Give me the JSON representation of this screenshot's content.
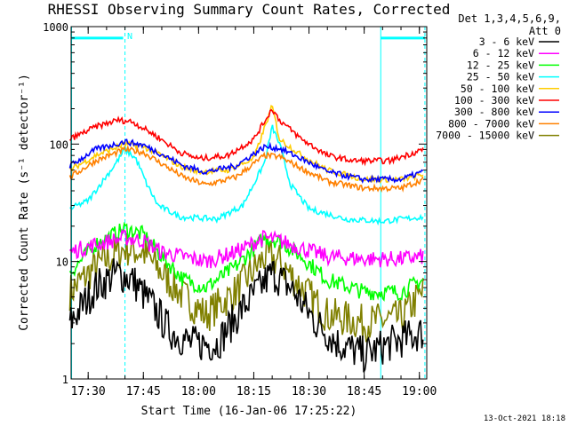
{
  "chart_data": {
    "type": "line",
    "title": "RHESSI Observing Summary Count Rates, Corrected",
    "xlabel": "Start Time (16-Jan-06 17:25:22)",
    "ylabel": "Corrected Count Rate (s⁻¹ detector⁻¹)",
    "yscale": "log",
    "ylim": [
      1,
      1000
    ],
    "xlim": [
      "17:25:22",
      "19:02:00"
    ],
    "y_tick_labels": [
      "1",
      "10",
      "100",
      "1000"
    ],
    "x_tick_labels": [
      "17:30",
      "17:45",
      "18:00",
      "18:15",
      "18:30",
      "18:45",
      "19:00"
    ],
    "legend_title_lines": [
      "Det 1,3,4,5,6,9,",
      "Att 0"
    ],
    "legend_position": "right",
    "timestamp": "13-Oct-2021 18:18",
    "night_marker_label": "N",
    "series": [
      {
        "name": "3 - 6 keV",
        "color": "#000000",
        "points": [
          [
            "17:25",
            3
          ],
          [
            "17:32",
            6
          ],
          [
            "17:38",
            8
          ],
          [
            "17:42",
            7
          ],
          [
            "17:48",
            4
          ],
          [
            "17:52",
            2.6
          ],
          [
            "17:58",
            2
          ],
          [
            "18:05",
            2
          ],
          [
            "18:12",
            4
          ],
          [
            "18:20",
            8
          ],
          [
            "18:25",
            6
          ],
          [
            "18:32",
            3
          ],
          [
            "18:38",
            2
          ],
          [
            "18:45",
            1.6
          ],
          [
            "18:52",
            2
          ],
          [
            "19:01",
            2.5
          ]
        ]
      },
      {
        "name": "6 - 12 keV",
        "color": "#ff00ff",
        "points": [
          [
            "17:25",
            12
          ],
          [
            "17:32",
            14
          ],
          [
            "17:40",
            16
          ],
          [
            "17:45",
            15
          ],
          [
            "17:50",
            12
          ],
          [
            "17:56",
            11
          ],
          [
            "18:02",
            10
          ],
          [
            "18:10",
            12
          ],
          [
            "18:18",
            16
          ],
          [
            "18:22",
            15
          ],
          [
            "18:28",
            13
          ],
          [
            "18:35",
            11
          ],
          [
            "18:45",
            10.5
          ],
          [
            "18:55",
            10.5
          ],
          [
            "19:01",
            11
          ]
        ]
      },
      {
        "name": "12 - 25 keV",
        "color": "#00ff00",
        "points": [
          [
            "17:25",
            8
          ],
          [
            "17:32",
            14
          ],
          [
            "17:40",
            19
          ],
          [
            "17:45",
            17
          ],
          [
            "17:50",
            11
          ],
          [
            "17:56",
            7
          ],
          [
            "18:02",
            6
          ],
          [
            "18:10",
            9
          ],
          [
            "18:18",
            16
          ],
          [
            "18:22",
            15
          ],
          [
            "18:28",
            11
          ],
          [
            "18:35",
            7
          ],
          [
            "18:45",
            5.5
          ],
          [
            "18:55",
            5.5
          ],
          [
            "19:01",
            7
          ]
        ]
      },
      {
        "name": "25 - 50 keV",
        "color": "#00ffff",
        "points": [
          [
            "17:25",
            28
          ],
          [
            "17:30",
            33
          ],
          [
            "17:37",
            65
          ],
          [
            "17:40",
            90
          ],
          [
            "17:43",
            75
          ],
          [
            "17:46",
            45
          ],
          [
            "17:49",
            30
          ],
          [
            "17:55",
            24
          ],
          [
            "18:05",
            23
          ],
          [
            "18:12",
            30
          ],
          [
            "18:18",
            70
          ],
          [
            "18:20",
            140
          ],
          [
            "18:22",
            100
          ],
          [
            "18:25",
            45
          ],
          [
            "18:30",
            28
          ],
          [
            "18:40",
            23
          ],
          [
            "18:50",
            22
          ],
          [
            "19:01",
            24
          ]
        ]
      },
      {
        "name": "50 - 100 keV",
        "color": "#ffcc00",
        "points": [
          [
            "17:25",
            60
          ],
          [
            "17:32",
            80
          ],
          [
            "17:40",
            100
          ],
          [
            "17:45",
            95
          ],
          [
            "17:50",
            80
          ],
          [
            "17:55",
            65
          ],
          [
            "18:00",
            58
          ],
          [
            "18:08",
            60
          ],
          [
            "18:15",
            75
          ],
          [
            "18:20",
            210
          ],
          [
            "18:22",
            110
          ],
          [
            "18:28",
            80
          ],
          [
            "18:35",
            60
          ],
          [
            "18:45",
            50
          ],
          [
            "18:55",
            50
          ],
          [
            "19:01",
            55
          ]
        ]
      },
      {
        "name": "100 - 300 keV",
        "color": "#ff0000",
        "points": [
          [
            "17:25",
            110
          ],
          [
            "17:32",
            140
          ],
          [
            "17:38",
            160
          ],
          [
            "17:42",
            155
          ],
          [
            "17:48",
            120
          ],
          [
            "17:55",
            85
          ],
          [
            "18:00",
            75
          ],
          [
            "18:08",
            80
          ],
          [
            "18:15",
            110
          ],
          [
            "18:20",
            200
          ],
          [
            "18:22",
            160
          ],
          [
            "18:28",
            110
          ],
          [
            "18:35",
            80
          ],
          [
            "18:42",
            72
          ],
          [
            "18:52",
            72
          ],
          [
            "19:01",
            90
          ]
        ]
      },
      {
        "name": "300 - 800 keV",
        "color": "#0000ff",
        "points": [
          [
            "17:25",
            65
          ],
          [
            "17:32",
            90
          ],
          [
            "17:40",
            105
          ],
          [
            "17:45",
            98
          ],
          [
            "17:50",
            82
          ],
          [
            "17:56",
            65
          ],
          [
            "18:02",
            58
          ],
          [
            "18:10",
            65
          ],
          [
            "18:18",
            95
          ],
          [
            "18:22",
            92
          ],
          [
            "18:28",
            75
          ],
          [
            "18:35",
            58
          ],
          [
            "18:45",
            50
          ],
          [
            "18:55",
            50
          ],
          [
            "19:01",
            58
          ]
        ]
      },
      {
        "name": "800 - 7000 keV",
        "color": "#ff8000",
        "points": [
          [
            "17:25",
            52
          ],
          [
            "17:32",
            72
          ],
          [
            "17:40",
            90
          ],
          [
            "17:45",
            85
          ],
          [
            "17:50",
            68
          ],
          [
            "17:56",
            52
          ],
          [
            "18:02",
            45
          ],
          [
            "18:10",
            52
          ],
          [
            "18:18",
            80
          ],
          [
            "18:22",
            78
          ],
          [
            "18:28",
            62
          ],
          [
            "18:35",
            48
          ],
          [
            "18:45",
            42
          ],
          [
            "18:55",
            42
          ],
          [
            "19:01",
            50
          ]
        ]
      },
      {
        "name": "7000 - 15000 keV",
        "color": "#808000",
        "points": [
          [
            "17:25",
            5.5
          ],
          [
            "17:32",
            9
          ],
          [
            "17:40",
            13
          ],
          [
            "17:45",
            12
          ],
          [
            "17:50",
            8
          ],
          [
            "17:56",
            5
          ],
          [
            "18:02",
            3.5
          ],
          [
            "18:10",
            5.5
          ],
          [
            "18:18",
            11
          ],
          [
            "18:22",
            10
          ],
          [
            "18:28",
            6
          ],
          [
            "18:35",
            3.5
          ],
          [
            "18:45",
            3
          ],
          [
            "18:55",
            3.3
          ],
          [
            "19:01",
            5.5
          ]
        ]
      }
    ],
    "markers": [
      {
        "kind": "night-bar",
        "x_start": "17:25:22",
        "x_end": "17:39:30",
        "y": 800,
        "color": "#00ffff"
      },
      {
        "kind": "night-bar",
        "x_start": "18:49:30",
        "x_end": "19:01:30",
        "y": 800,
        "color": "#00ffff"
      },
      {
        "kind": "dashed-line",
        "x": "17:40:00",
        "color": "#00ffff"
      },
      {
        "kind": "dashed-line",
        "x": "19:01:30",
        "color": "#00ffff"
      },
      {
        "kind": "solid-line",
        "x": "17:25:30",
        "color": "#00ffff"
      },
      {
        "kind": "solid-line",
        "x": "18:49:30",
        "color": "#00ffff"
      }
    ]
  }
}
